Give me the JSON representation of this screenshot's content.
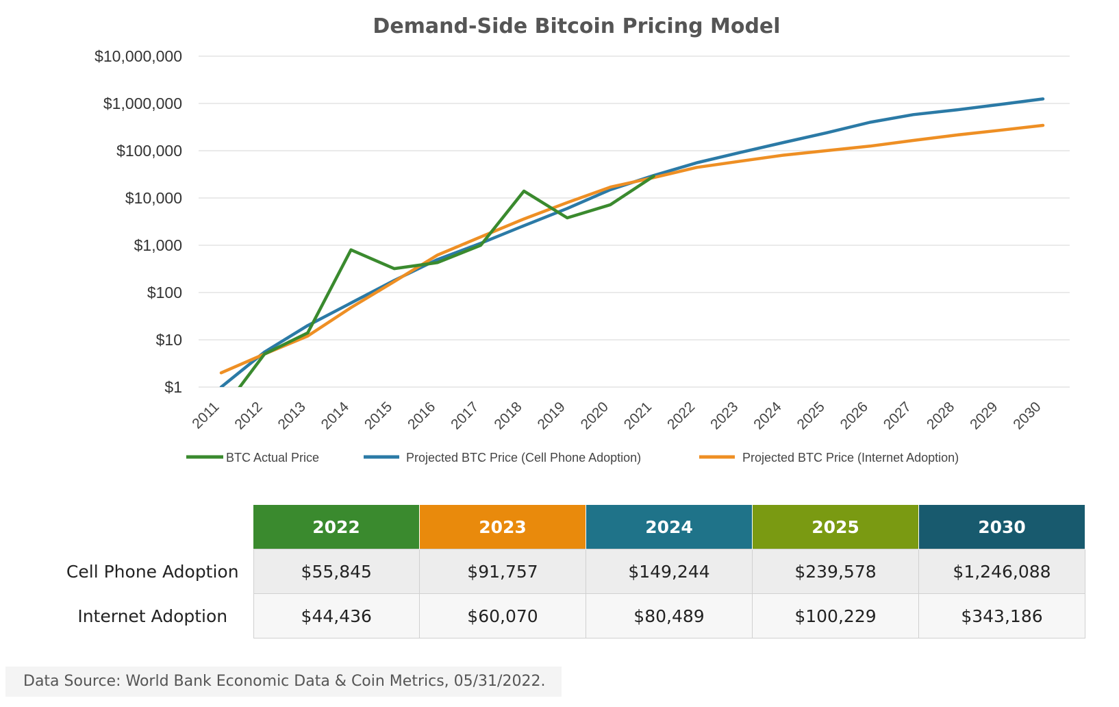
{
  "chart_data": {
    "type": "line",
    "title": "Demand-Side Bitcoin Pricing Model",
    "y_scale": "log",
    "ylim": [
      1,
      10000000
    ],
    "y_ticks": [
      {
        "value": 1,
        "label": "$1"
      },
      {
        "value": 10,
        "label": "$10"
      },
      {
        "value": 100,
        "label": "$100"
      },
      {
        "value": 1000,
        "label": "$1,000"
      },
      {
        "value": 10000,
        "label": "$10,000"
      },
      {
        "value": 100000,
        "label": "$100,000"
      },
      {
        "value": 1000000,
        "label": "$1,000,000"
      },
      {
        "value": 10000000,
        "label": "$10,000,000"
      }
    ],
    "x": [
      "2011",
      "2012",
      "2013",
      "2014",
      "2015",
      "2016",
      "2017",
      "2018",
      "2019",
      "2020",
      "2021",
      "2022",
      "2023",
      "2024",
      "2025",
      "2026",
      "2027",
      "2028",
      "2029",
      "2030"
    ],
    "grid": true,
    "legend_position": "bottom",
    "series": [
      {
        "name": "BTC Actual Price",
        "color": "#3a8a2e",
        "values": [
          0.3,
          5,
          14,
          800,
          320,
          430,
          1000,
          14000,
          3800,
          7200,
          29000,
          null,
          null,
          null,
          null,
          null,
          null,
          null,
          null,
          null
        ]
      },
      {
        "name": "Projected BTC Price (Cell Phone Adoption)",
        "color": "#2b7aa6",
        "values": [
          1,
          5.5,
          20,
          60,
          180,
          500,
          1100,
          2600,
          6000,
          15000,
          30000,
          55845,
          91757,
          149244,
          239578,
          400000,
          580000,
          730000,
          950000,
          1246088
        ]
      },
      {
        "name": "Projected BTC Price (Internet Adoption)",
        "color": "#ee8f24",
        "values": [
          2,
          5,
          12,
          48,
          170,
          620,
          1500,
          3600,
          8000,
          17000,
          27000,
          44436,
          60070,
          80489,
          100229,
          125000,
          165000,
          215000,
          270000,
          343186
        ]
      }
    ]
  },
  "table": {
    "years": [
      {
        "label": "2022",
        "color": "#3a8a2e"
      },
      {
        "label": "2023",
        "color": "#e98a0c"
      },
      {
        "label": "2024",
        "color": "#1f7389"
      },
      {
        "label": "2025",
        "color": "#7a9a12"
      },
      {
        "label": "2030",
        "color": "#185a6e"
      }
    ],
    "rows": [
      {
        "label": "Cell Phone Adoption",
        "values": [
          "$55,845",
          "$91,757",
          "$149,244",
          "$239,578",
          "$1,246,088"
        ]
      },
      {
        "label": "Internet Adoption",
        "values": [
          "$44,436",
          "$60,070",
          "$80,489",
          "$100,229",
          "$343,186"
        ]
      }
    ]
  },
  "source": "Data Source: World Bank Economic Data & Coin Metrics, 05/31/2022."
}
